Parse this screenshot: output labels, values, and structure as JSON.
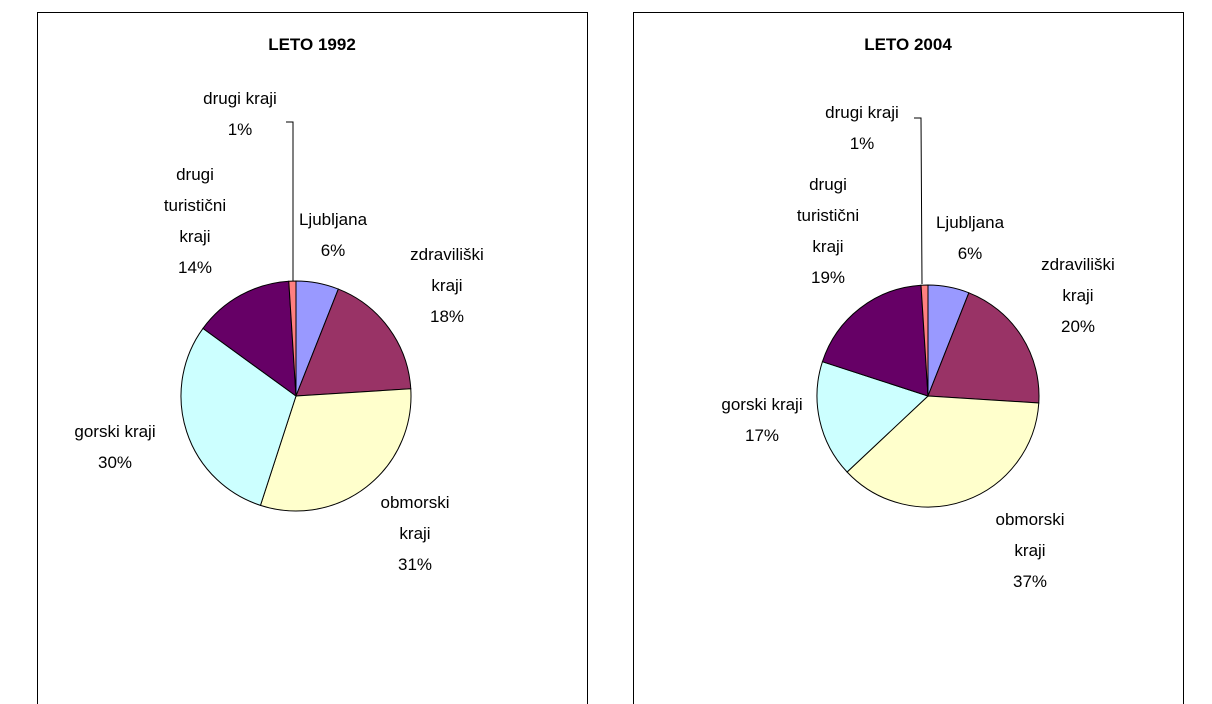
{
  "chart_data": [
    {
      "type": "pie",
      "title": "LETO 1992",
      "categories": [
        "Ljubljana",
        "zdraviliški\nkraji",
        "obmorski\nkraji",
        "gorski kraji",
        "drugi\nturistični\nkraji",
        "drugi kraji"
      ],
      "values": [
        6,
        18,
        31,
        30,
        14,
        1
      ],
      "value_labels": [
        "6%",
        "18%",
        "31%",
        "30%",
        "14%",
        "1%"
      ],
      "colors": [
        "#9999ff",
        "#993366",
        "#ffffcc",
        "#ccffff",
        "#660066",
        "#ff8080"
      ]
    },
    {
      "type": "pie",
      "title": "LETO 2004",
      "categories": [
        "Ljubljana",
        "zdraviliški\nkraji",
        "obmorski\nkraji",
        "gorski kraji",
        "drugi\nturistični\nkraji",
        "drugi kraji"
      ],
      "values": [
        6,
        20,
        37,
        17,
        19,
        1
      ],
      "value_labels": [
        "6%",
        "20%",
        "37%",
        "17%",
        "19%",
        "1%"
      ],
      "colors": [
        "#9999ff",
        "#993366",
        "#ffffcc",
        "#ccffff",
        "#660066",
        "#ff8080"
      ]
    }
  ]
}
